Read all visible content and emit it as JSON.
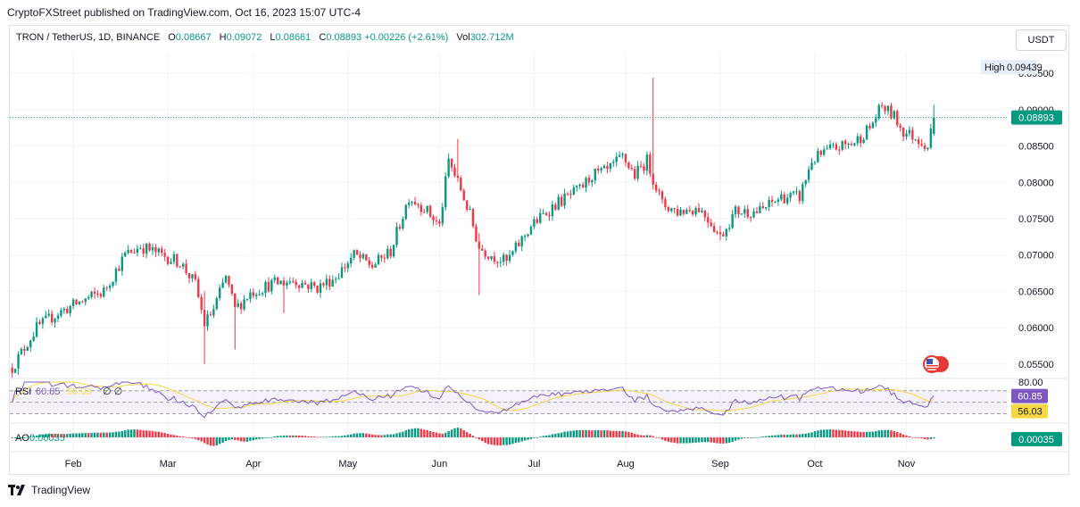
{
  "header": {
    "published": "CryptoFXStreet published on TradingView.com, Oct 16, 2023 15:07 UTC-4"
  },
  "legend": {
    "symbol": "TRON / TetherUS, 1D, BINANCE",
    "o_label": "O",
    "o_value": "0.08667",
    "h_label": "H",
    "h_value": "0.09072",
    "l_label": "L",
    "l_value": "0.08661",
    "c_label": "C",
    "c_value": "0.08893",
    "change": "+0.00226 (+2.61%)",
    "vol_label": "Vol",
    "vol_value": "302.712M"
  },
  "currency_button": "USDT",
  "footer": {
    "brand": "TradingView"
  },
  "colors": {
    "up": "#089981",
    "down": "#f23645",
    "rsi": "#7e57c2",
    "rsi_ma": "#f5d842"
  },
  "chart_data": [
    {
      "type": "candlestick",
      "title": "TRON / TetherUS, 1D, BINANCE",
      "x_ticks": [
        "Feb",
        "Mar",
        "Apr",
        "May",
        "Jun",
        "Jul",
        "Aug",
        "Sep",
        "Oct",
        "Nov"
      ],
      "y_ticks": [
        "0.05500",
        "0.06000",
        "0.06500",
        "0.07000",
        "0.07500",
        "0.08000",
        "0.08500",
        "0.09000",
        "0.09500"
      ],
      "ylim": [
        0.0535,
        0.0965
      ],
      "last_price": "0.08893",
      "high_label": "High",
      "high_value": "0.09439",
      "trend_points": [
        {
          "day": 0,
          "v": 0.0545
        },
        {
          "day": 8,
          "v": 0.06
        },
        {
          "day": 15,
          "v": 0.062
        },
        {
          "day": 22,
          "v": 0.0635
        },
        {
          "day": 30,
          "v": 0.065
        },
        {
          "day": 37,
          "v": 0.07
        },
        {
          "day": 42,
          "v": 0.0712
        },
        {
          "day": 49,
          "v": 0.07
        },
        {
          "day": 55,
          "v": 0.069
        },
        {
          "day": 60,
          "v": 0.066
        },
        {
          "day": 63,
          "v": 0.0605
        },
        {
          "day": 66,
          "v": 0.0625
        },
        {
          "day": 70,
          "v": 0.067
        },
        {
          "day": 73,
          "v": 0.0625
        },
        {
          "day": 78,
          "v": 0.0648
        },
        {
          "day": 85,
          "v": 0.066
        },
        {
          "day": 92,
          "v": 0.0665
        },
        {
          "day": 100,
          "v": 0.0655
        },
        {
          "day": 106,
          "v": 0.067
        },
        {
          "day": 112,
          "v": 0.07
        },
        {
          "day": 118,
          "v": 0.0685
        },
        {
          "day": 124,
          "v": 0.0705
        },
        {
          "day": 130,
          "v": 0.078
        },
        {
          "day": 135,
          "v": 0.0765
        },
        {
          "day": 140,
          "v": 0.074
        },
        {
          "day": 143,
          "v": 0.083
        },
        {
          "day": 147,
          "v": 0.079
        },
        {
          "day": 150,
          "v": 0.0755
        },
        {
          "day": 153,
          "v": 0.071
        },
        {
          "day": 157,
          "v": 0.07
        },
        {
          "day": 162,
          "v": 0.069
        },
        {
          "day": 170,
          "v": 0.074
        },
        {
          "day": 178,
          "v": 0.077
        },
        {
          "day": 186,
          "v": 0.079
        },
        {
          "day": 190,
          "v": 0.081
        },
        {
          "day": 195,
          "v": 0.0815
        },
        {
          "day": 200,
          "v": 0.0835
        },
        {
          "day": 204,
          "v": 0.081
        },
        {
          "day": 208,
          "v": 0.083
        },
        {
          "day": 213,
          "v": 0.077
        },
        {
          "day": 218,
          "v": 0.076
        },
        {
          "day": 225,
          "v": 0.0765
        },
        {
          "day": 229,
          "v": 0.0745
        },
        {
          "day": 232,
          "v": 0.0725
        },
        {
          "day": 237,
          "v": 0.076
        },
        {
          "day": 245,
          "v": 0.076
        },
        {
          "day": 252,
          "v": 0.078
        },
        {
          "day": 258,
          "v": 0.078
        },
        {
          "day": 262,
          "v": 0.083
        },
        {
          "day": 268,
          "v": 0.0845
        },
        {
          "day": 276,
          "v": 0.0855
        },
        {
          "day": 281,
          "v": 0.0875
        },
        {
          "day": 285,
          "v": 0.0905
        },
        {
          "day": 289,
          "v": 0.089
        },
        {
          "day": 292,
          "v": 0.087
        },
        {
          "day": 297,
          "v": 0.086
        },
        {
          "day": 300,
          "v": 0.085
        },
        {
          "day": 302,
          "v": 0.0889
        }
      ],
      "spikes": [
        {
          "day": 2,
          "high": 0.056,
          "low": 0.0535
        },
        {
          "day": 63,
          "high": 0.065,
          "low": 0.055
        },
        {
          "day": 73,
          "high": 0.064,
          "low": 0.057
        },
        {
          "day": 89,
          "high": 0.0665,
          "low": 0.062
        },
        {
          "day": 146,
          "high": 0.086,
          "low": 0.081
        },
        {
          "day": 153,
          "high": 0.073,
          "low": 0.0645
        },
        {
          "day": 210,
          "high": 0.0944,
          "low": 0.081
        },
        {
          "day": 232,
          "high": 0.074,
          "low": 0.072
        },
        {
          "day": 302,
          "high": 0.0907,
          "low": 0.0866
        }
      ]
    },
    {
      "type": "line",
      "title": "RSI",
      "label": "RSI",
      "value": "60.85",
      "ma_value": "56.03",
      "extra": "∅ ∅",
      "upper_band": "80.00",
      "band_values": [
        30,
        50,
        70
      ],
      "ylim": [
        20,
        85
      ]
    },
    {
      "type": "bar",
      "title": "AO",
      "label": "AO",
      "legend_value": "0.00035",
      "last_value": "0.00035"
    }
  ]
}
